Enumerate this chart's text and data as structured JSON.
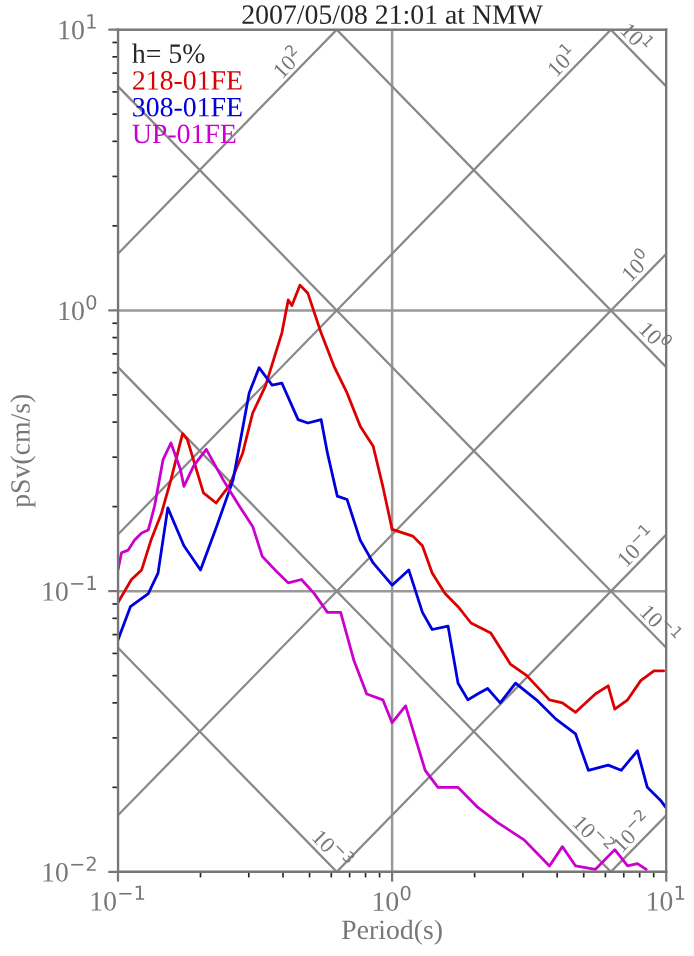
{
  "chart_data": {
    "type": "line",
    "title": "2007/05/08 21:01 at NMW",
    "xlabel": "Period(s)",
    "ylabel": "pSv(cm/s)",
    "legend_title": "h= 5%",
    "legend": "top left",
    "log": "xy",
    "grid": true,
    "xlim": [
      0.1,
      10
    ],
    "ylim": [
      0.01,
      10
    ],
    "xticks": [
      {
        "value": 0.1,
        "label": "10$^{−1}$"
      },
      {
        "value": 1,
        "label": "10$^{0}$"
      },
      {
        "value": 10,
        "label": "10$^{1}$"
      }
    ],
    "yticks": [
      {
        "value": 0.01,
        "label": "10$^{−2}$"
      },
      {
        "value": 0.1,
        "label": "10$^{−1}$"
      },
      {
        "value": 1,
        "label": "10$^{0}$"
      },
      {
        "value": 10,
        "label": "10$^{1}$"
      }
    ],
    "series": [
      {
        "color": "#888888",
        "x": [
          0.1,
          0.628
        ],
        "values": [
          1.59,
          10
        ]
      },
      {
        "color": "#888888",
        "x": [
          0.1,
          6.28
        ],
        "values": [
          0.159,
          10
        ]
      },
      {
        "color": "#888888",
        "x": [
          0.1,
          10
        ],
        "values": [
          0.0159,
          1.59
        ]
      },
      {
        "color": "#888888",
        "x": [
          0.628,
          10
        ],
        "values": [
          0.01,
          0.159
        ]
      },
      {
        "color": "#888888",
        "x": [
          6.28,
          10
        ],
        "values": [
          0.01,
          0.0159
        ]
      },
      {
        "color": "#888888",
        "x": [
          6.28,
          10
        ],
        "values": [
          10,
          6.28
        ]
      },
      {
        "color": "#888888",
        "x": [
          0.628,
          10
        ],
        "values": [
          10,
          0.628
        ]
      },
      {
        "color": "#888888",
        "x": [
          0.1,
          10
        ],
        "values": [
          6.28,
          0.0628
        ]
      },
      {
        "color": "#888888",
        "x": [
          0.1,
          6.28
        ],
        "values": [
          0.628,
          0.01
        ]
      },
      {
        "color": "#888888",
        "x": [
          0.1,
          0.628
        ],
        "values": [
          0.0628,
          0.01
        ]
      },
      {
        "name": "218-01FE",
        "color": "#dd0000",
        "x": [
          0.1,
          0.112,
          0.122,
          0.132,
          0.144,
          0.156,
          0.172,
          0.179,
          0.205,
          0.228,
          0.255,
          0.285,
          0.31,
          0.345,
          0.396,
          0.418,
          0.431,
          0.461,
          0.493,
          0.551,
          0.614,
          0.685,
          0.765,
          0.853,
          0.925,
          1.0,
          1.19,
          1.29,
          1.4,
          1.56,
          1.74,
          1.94,
          2.29,
          2.7,
          3.1,
          3.75,
          4.18,
          4.67,
          5.51,
          6.14,
          6.49,
          7.23,
          8.07,
          9.02,
          9.79
        ],
        "values": [
          0.091,
          0.11,
          0.119,
          0.152,
          0.189,
          0.249,
          0.364,
          0.347,
          0.224,
          0.206,
          0.238,
          0.31,
          0.431,
          0.537,
          0.83,
          1.09,
          1.04,
          1.23,
          1.15,
          0.83,
          0.632,
          0.508,
          0.387,
          0.328,
          0.236,
          0.166,
          0.157,
          0.145,
          0.116,
          0.098,
          0.088,
          0.077,
          0.071,
          0.055,
          0.05,
          0.041,
          0.04,
          0.037,
          0.043,
          0.046,
          0.038,
          0.041,
          0.048,
          0.052,
          0.052
        ]
      },
      {
        "name": "308-01FE",
        "color": "#0000dd",
        "x": [
          0.1,
          0.111,
          0.129,
          0.14,
          0.152,
          0.174,
          0.2,
          0.229,
          0.263,
          0.301,
          0.327,
          0.365,
          0.396,
          0.454,
          0.493,
          0.551,
          0.581,
          0.631,
          0.685,
          0.765,
          0.853,
          1.0,
          1.15,
          1.29,
          1.4,
          1.6,
          1.74,
          1.89,
          2.05,
          2.23,
          2.48,
          2.82,
          3.36,
          3.96,
          4.67,
          5.2,
          6.14,
          6.85,
          7.85,
          8.53,
          9.52,
          9.95
        ],
        "values": [
          0.067,
          0.088,
          0.098,
          0.116,
          0.198,
          0.145,
          0.119,
          0.17,
          0.249,
          0.508,
          0.625,
          0.542,
          0.551,
          0.408,
          0.397,
          0.408,
          0.31,
          0.218,
          0.212,
          0.152,
          0.126,
          0.105,
          0.119,
          0.084,
          0.073,
          0.075,
          0.047,
          0.041,
          0.043,
          0.045,
          0.04,
          0.047,
          0.041,
          0.035,
          0.031,
          0.023,
          0.024,
          0.023,
          0.027,
          0.02,
          0.018,
          0.017
        ]
      },
      {
        "name": "UP-01FE",
        "color": "#cc00cc",
        "x": [
          0.1,
          0.103,
          0.109,
          0.115,
          0.122,
          0.129,
          0.136,
          0.146,
          0.156,
          0.169,
          0.174,
          0.189,
          0.21,
          0.242,
          0.277,
          0.31,
          0.336,
          0.374,
          0.418,
          0.467,
          0.52,
          0.581,
          0.649,
          0.724,
          0.808,
          0.925,
          1.0,
          1.12,
          1.32,
          1.47,
          1.74,
          2.05,
          2.42,
          3.03,
          3.75,
          4.18,
          4.67,
          5.51,
          6.49,
          7.23,
          7.85,
          8.45
        ],
        "values": [
          0.119,
          0.137,
          0.14,
          0.152,
          0.161,
          0.165,
          0.201,
          0.294,
          0.337,
          0.271,
          0.236,
          0.28,
          0.32,
          0.249,
          0.201,
          0.17,
          0.133,
          0.119,
          0.107,
          0.11,
          0.098,
          0.084,
          0.084,
          0.057,
          0.043,
          0.041,
          0.034,
          0.039,
          0.023,
          0.02,
          0.02,
          0.017,
          0.015,
          0.013,
          0.0105,
          0.0123,
          0.0105,
          0.0102,
          0.012,
          0.0105,
          0.0107,
          0.0102
        ]
      }
    ],
    "annotations": [
      {
        "text": "10$^{2}$",
        "x": 0.45,
        "y": 7.1
      },
      {
        "text": "10$^{1}$",
        "x": 4.5,
        "y": 7.2
      },
      {
        "text": "10$^{1}$",
        "x": 7.2,
        "y": 8.7
      },
      {
        "text": "10$^{0}$",
        "x": 8.4,
        "y": 1.34
      },
      {
        "text": "10$^{0}$",
        "x": 8.4,
        "y": 0.75
      },
      {
        "text": "10$^{−1}$",
        "x": 8.4,
        "y": 0.134
      },
      {
        "text": "10$^{−1}$",
        "x": 8.8,
        "y": 0.071
      },
      {
        "text": "10$^{−2}$",
        "x": 8.1,
        "y": 0.0129
      },
      {
        "text": "10$^{−2}$",
        "x": 5.0,
        "y": 0.0126
      },
      {
        "text": "10$^{−3}$",
        "x": 0.56,
        "y": 0.0112
      }
    ]
  }
}
